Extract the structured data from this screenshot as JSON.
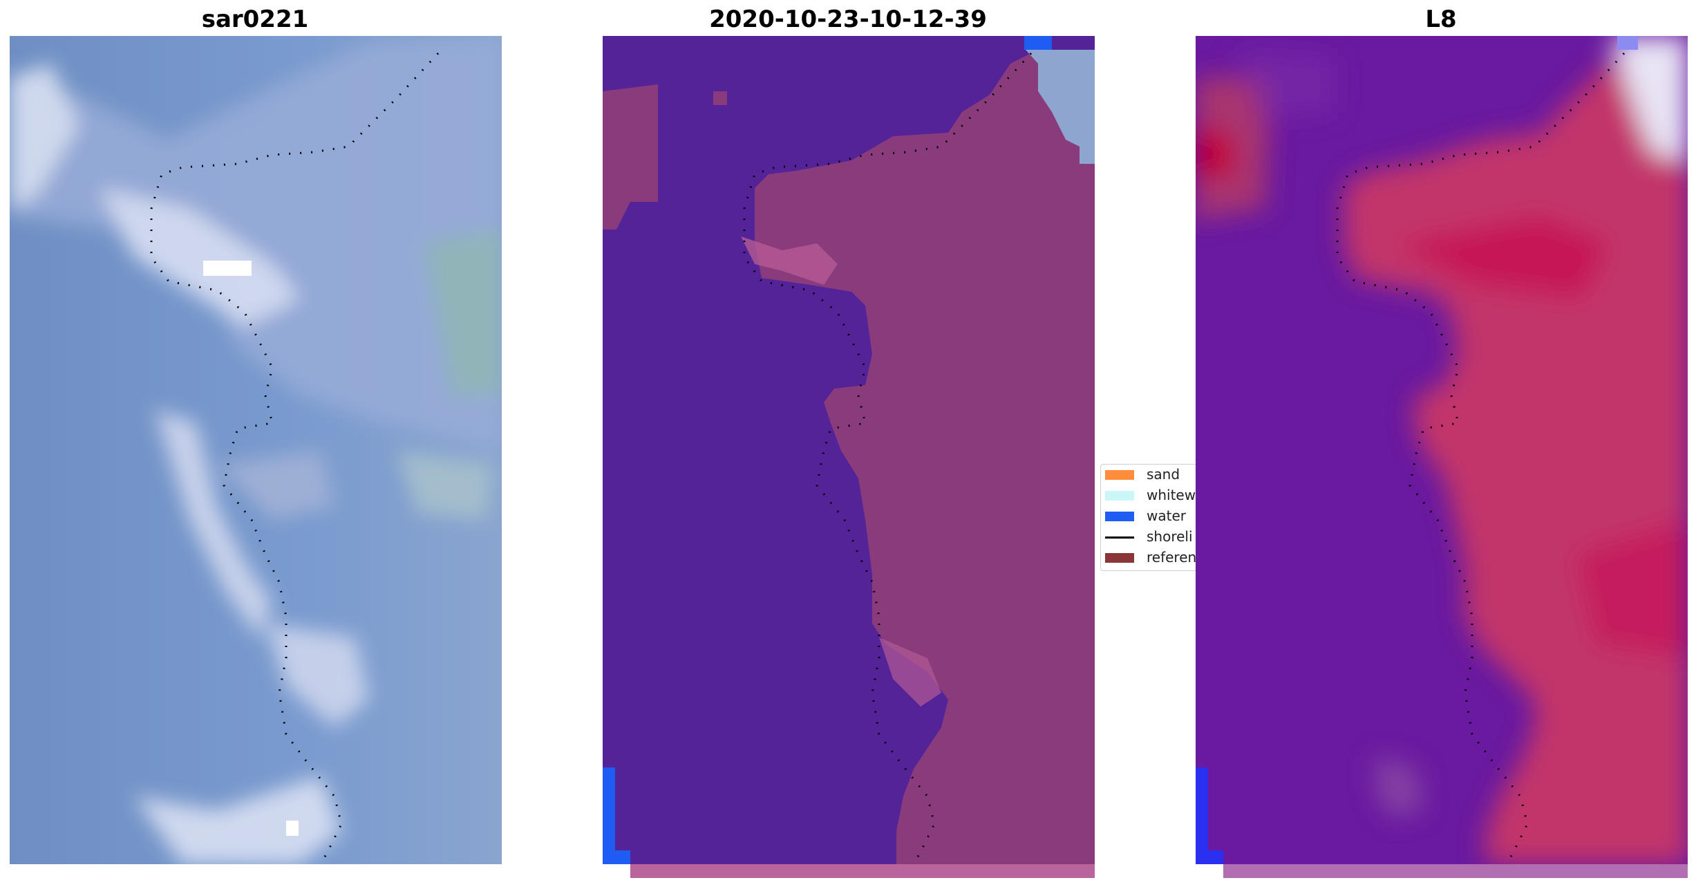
{
  "panels": [
    {
      "title": "sar0221"
    },
    {
      "title": "2020-10-23-10-12-39"
    },
    {
      "title": "L8"
    }
  ],
  "legend": {
    "items": [
      {
        "label": "sand",
        "color": "#ff8c3b"
      },
      {
        "label": "whitew",
        "color": "#c9f7f7"
      },
      {
        "label": "water",
        "color": "#1f5cf2"
      },
      {
        "label": "shoreli",
        "color": "#000000"
      },
      {
        "label": "referen",
        "color": "#8b3636"
      }
    ]
  },
  "colors": {
    "rgb_water": "#7090c0",
    "rgb_surf": "#cfd8ee",
    "class_water": "#542398",
    "class_land": "#8a3b7c",
    "class_land_light": "#b45a95",
    "class_blue_pixel": "#1f5cf2",
    "ndwi_water": "#6a1aa0",
    "ndwi_land": "#c2356a",
    "ndwi_land_dark": "#c0003a"
  }
}
